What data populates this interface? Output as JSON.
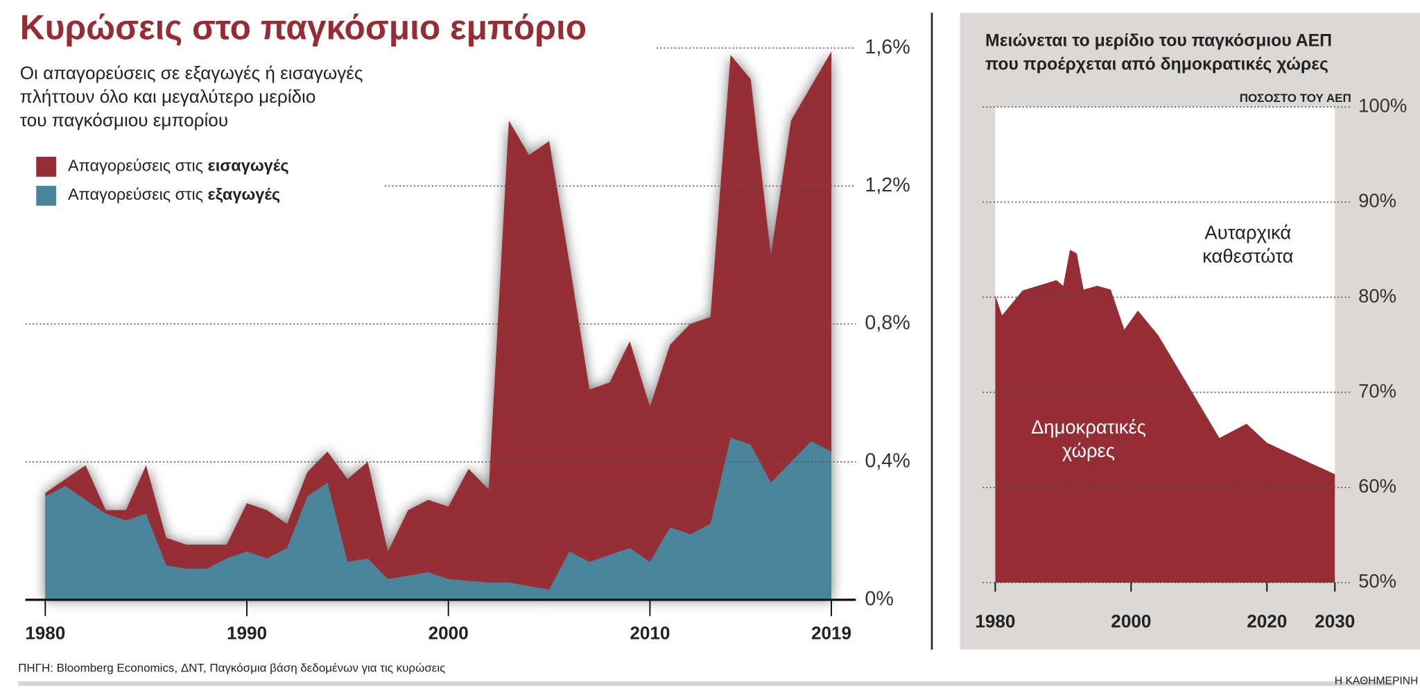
{
  "chart_data": [
    {
      "type": "area",
      "title": "Κυρώσεις στο παγκόσμιο εμπόριο",
      "subtitle": [
        "Οι απαγορεύσεις σε εξαγωγές ή εισαγωγές",
        "πλήττουν όλο και μεγαλύτερο μερίδιο",
        "του παγκόσμιου εμπορίου"
      ],
      "x": [
        1980,
        1981,
        1982,
        1983,
        1984,
        1985,
        1986,
        1987,
        1988,
        1989,
        1990,
        1991,
        1992,
        1993,
        1994,
        1995,
        1996,
        1997,
        1998,
        1999,
        2000,
        2001,
        2002,
        2003,
        2004,
        2005,
        2006,
        2007,
        2008,
        2009,
        2010,
        2011,
        2012,
        2013,
        2014,
        2015,
        2016,
        2017,
        2018,
        2019
      ],
      "series": [
        {
          "name": "Απαγορεύσεις στις εισαγωγές",
          "color": "#962d35",
          "values": [
            0.31,
            0.35,
            0.39,
            0.26,
            0.26,
            0.39,
            0.18,
            0.16,
            0.16,
            0.16,
            0.28,
            0.26,
            0.22,
            0.37,
            0.43,
            0.35,
            0.4,
            0.14,
            0.26,
            0.29,
            0.27,
            0.38,
            0.32,
            1.39,
            1.29,
            1.33,
            0.98,
            0.61,
            0.63,
            0.75,
            0.56,
            0.74,
            0.8,
            0.82,
            1.58,
            1.51,
            1.0,
            1.39,
            1.49,
            1.59
          ]
        },
        {
          "name": "Απαγορεύσεις στις εξαγωγές",
          "color": "#4a859c",
          "values": [
            0.3,
            0.33,
            0.29,
            0.25,
            0.23,
            0.25,
            0.1,
            0.09,
            0.09,
            0.12,
            0.14,
            0.12,
            0.15,
            0.3,
            0.34,
            0.11,
            0.12,
            0.06,
            0.07,
            0.08,
            0.06,
            0.055,
            0.05,
            0.05,
            0.04,
            0.03,
            0.14,
            0.11,
            0.13,
            0.15,
            0.11,
            0.21,
            0.19,
            0.22,
            0.47,
            0.45,
            0.34,
            0.4,
            0.46,
            0.43
          ]
        }
      ],
      "xlim": [
        1980,
        2019
      ],
      "xticks": [
        1980,
        1990,
        2000,
        2010,
        2019
      ],
      "ylim": [
        0,
        1.6
      ],
      "yticks": [
        {
          "value": 0,
          "label": "0%"
        },
        {
          "value": 0.4,
          "label": "0,4%"
        },
        {
          "value": 0.8,
          "label": "0,8%"
        },
        {
          "value": 1.2,
          "label": "1,2%"
        },
        {
          "value": 1.6,
          "label": "1,6%"
        }
      ],
      "grid": true
    },
    {
      "type": "area",
      "title": [
        "Μειώνεται το μερίδιο του παγκόσμιου ΑΕΠ",
        "που προέρχεται από δημοκρατικές χώρες"
      ],
      "y_label": "ΠΟΣΟΣΤΟ ΤΟΥ ΑΕΠ",
      "x": [
        1980,
        1981,
        1984,
        1989,
        1990,
        1991,
        1992,
        1993,
        1995,
        1997,
        1999,
        2001,
        2004,
        2013,
        2017,
        2020,
        2026,
        2030
      ],
      "series": [
        {
          "name": [
            "Δημοκρατικές",
            "χώρες"
          ],
          "color": "#962d35",
          "values": [
            80.2,
            78.1,
            80.7,
            81.8,
            81.2,
            85.0,
            84.6,
            80.8,
            81.2,
            80.8,
            76.6,
            78.6,
            76.0,
            65.2,
            66.7,
            64.7,
            62.7,
            61.4
          ]
        }
      ],
      "upper_label": [
        "Αυταρχικά",
        "καθεστώτα"
      ],
      "xlim": [
        1980,
        2030
      ],
      "xticks": [
        1980,
        2000,
        2020,
        2030
      ],
      "ylim": [
        50,
        100
      ],
      "yticks": [
        {
          "value": 50,
          "label": "50%"
        },
        {
          "value": 60,
          "label": "60%"
        },
        {
          "value": 70,
          "label": "70%"
        },
        {
          "value": 80,
          "label": "80%"
        },
        {
          "value": 90,
          "label": "90%"
        },
        {
          "value": 100,
          "label": "100%"
        }
      ],
      "grid": true
    }
  ],
  "source": "ΠΗΓΗ: Bloomberg Economics, ΔΝΤ, Παγκόσμια βάση δεδομένων για τις κυρώσεις",
  "brand": "Η ΚΑΘΗΜΕΡΙΝΗ"
}
